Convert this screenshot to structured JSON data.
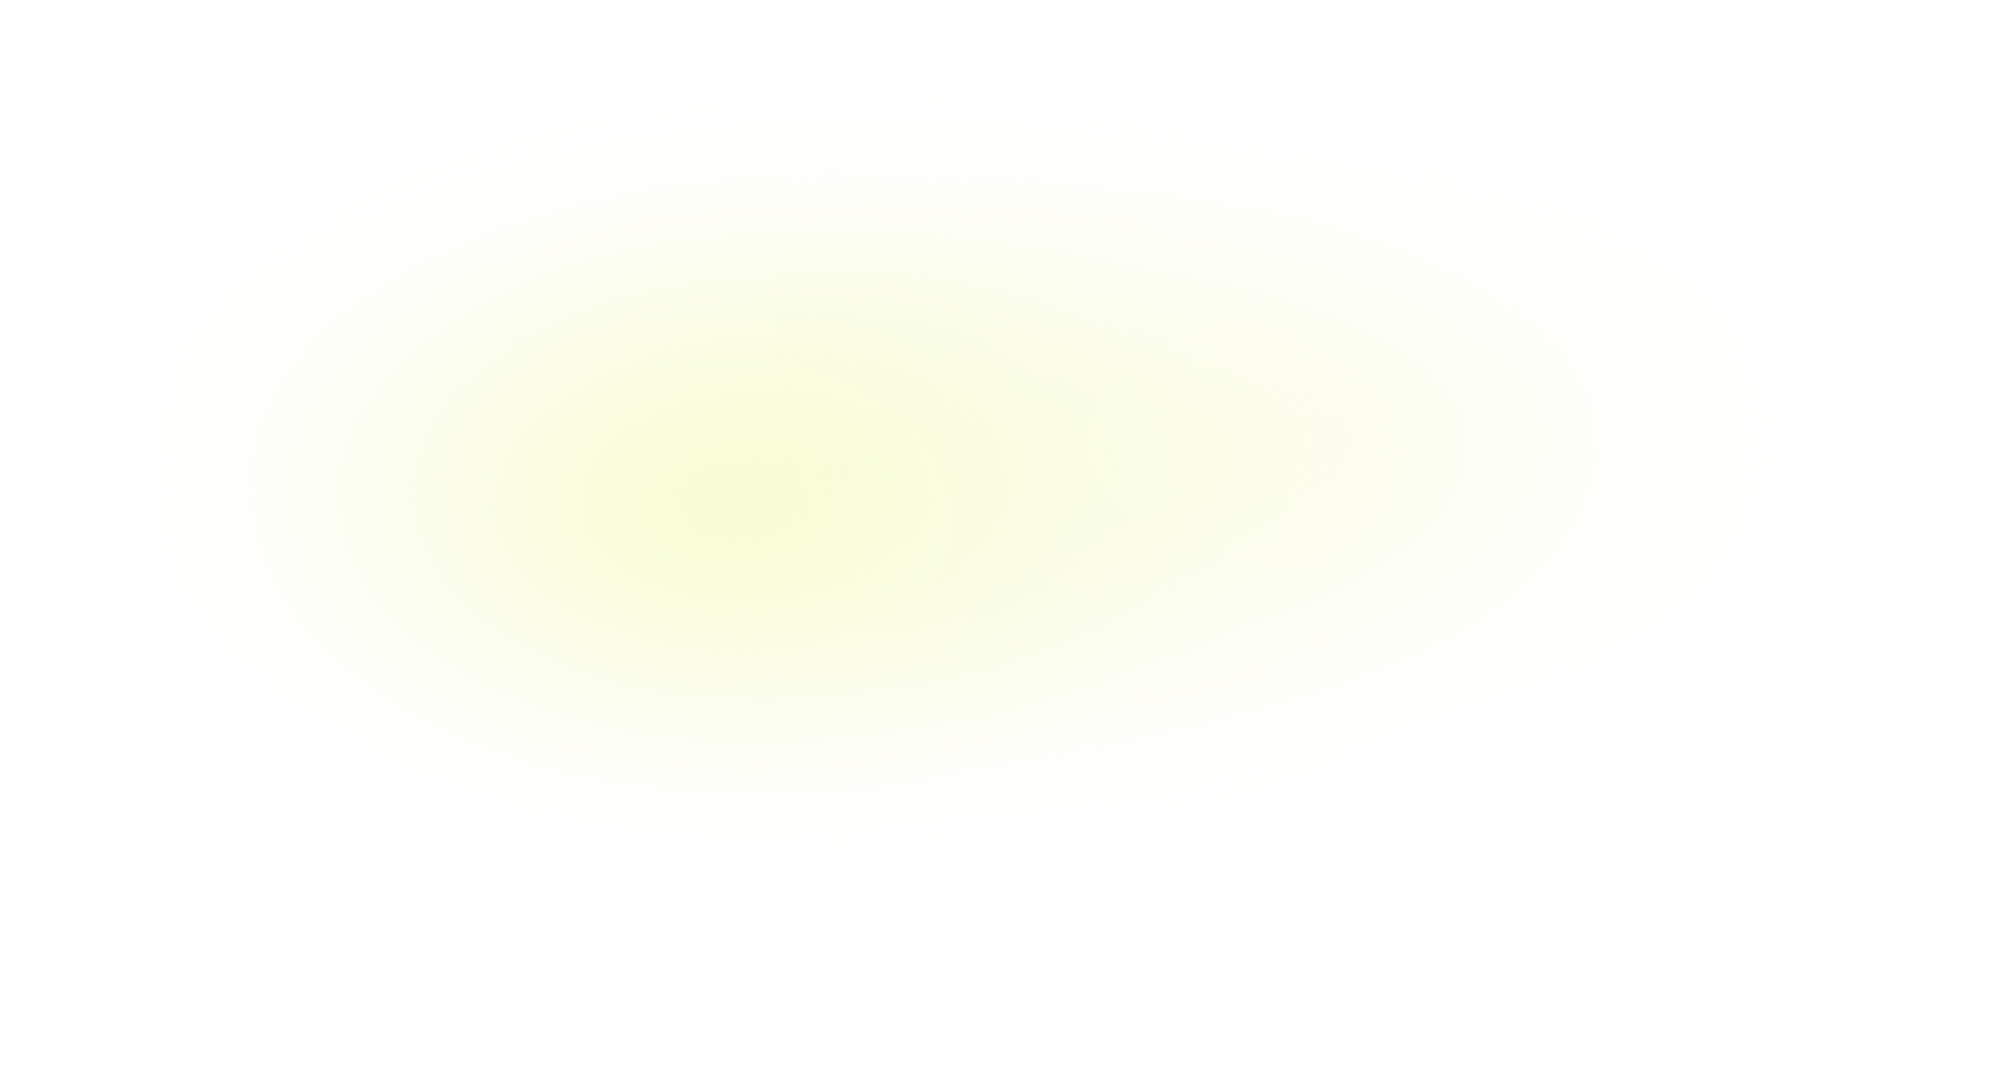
{
  "background": {
    "base_color": "#ffffff",
    "glow_color": "#f8fcd2"
  }
}
